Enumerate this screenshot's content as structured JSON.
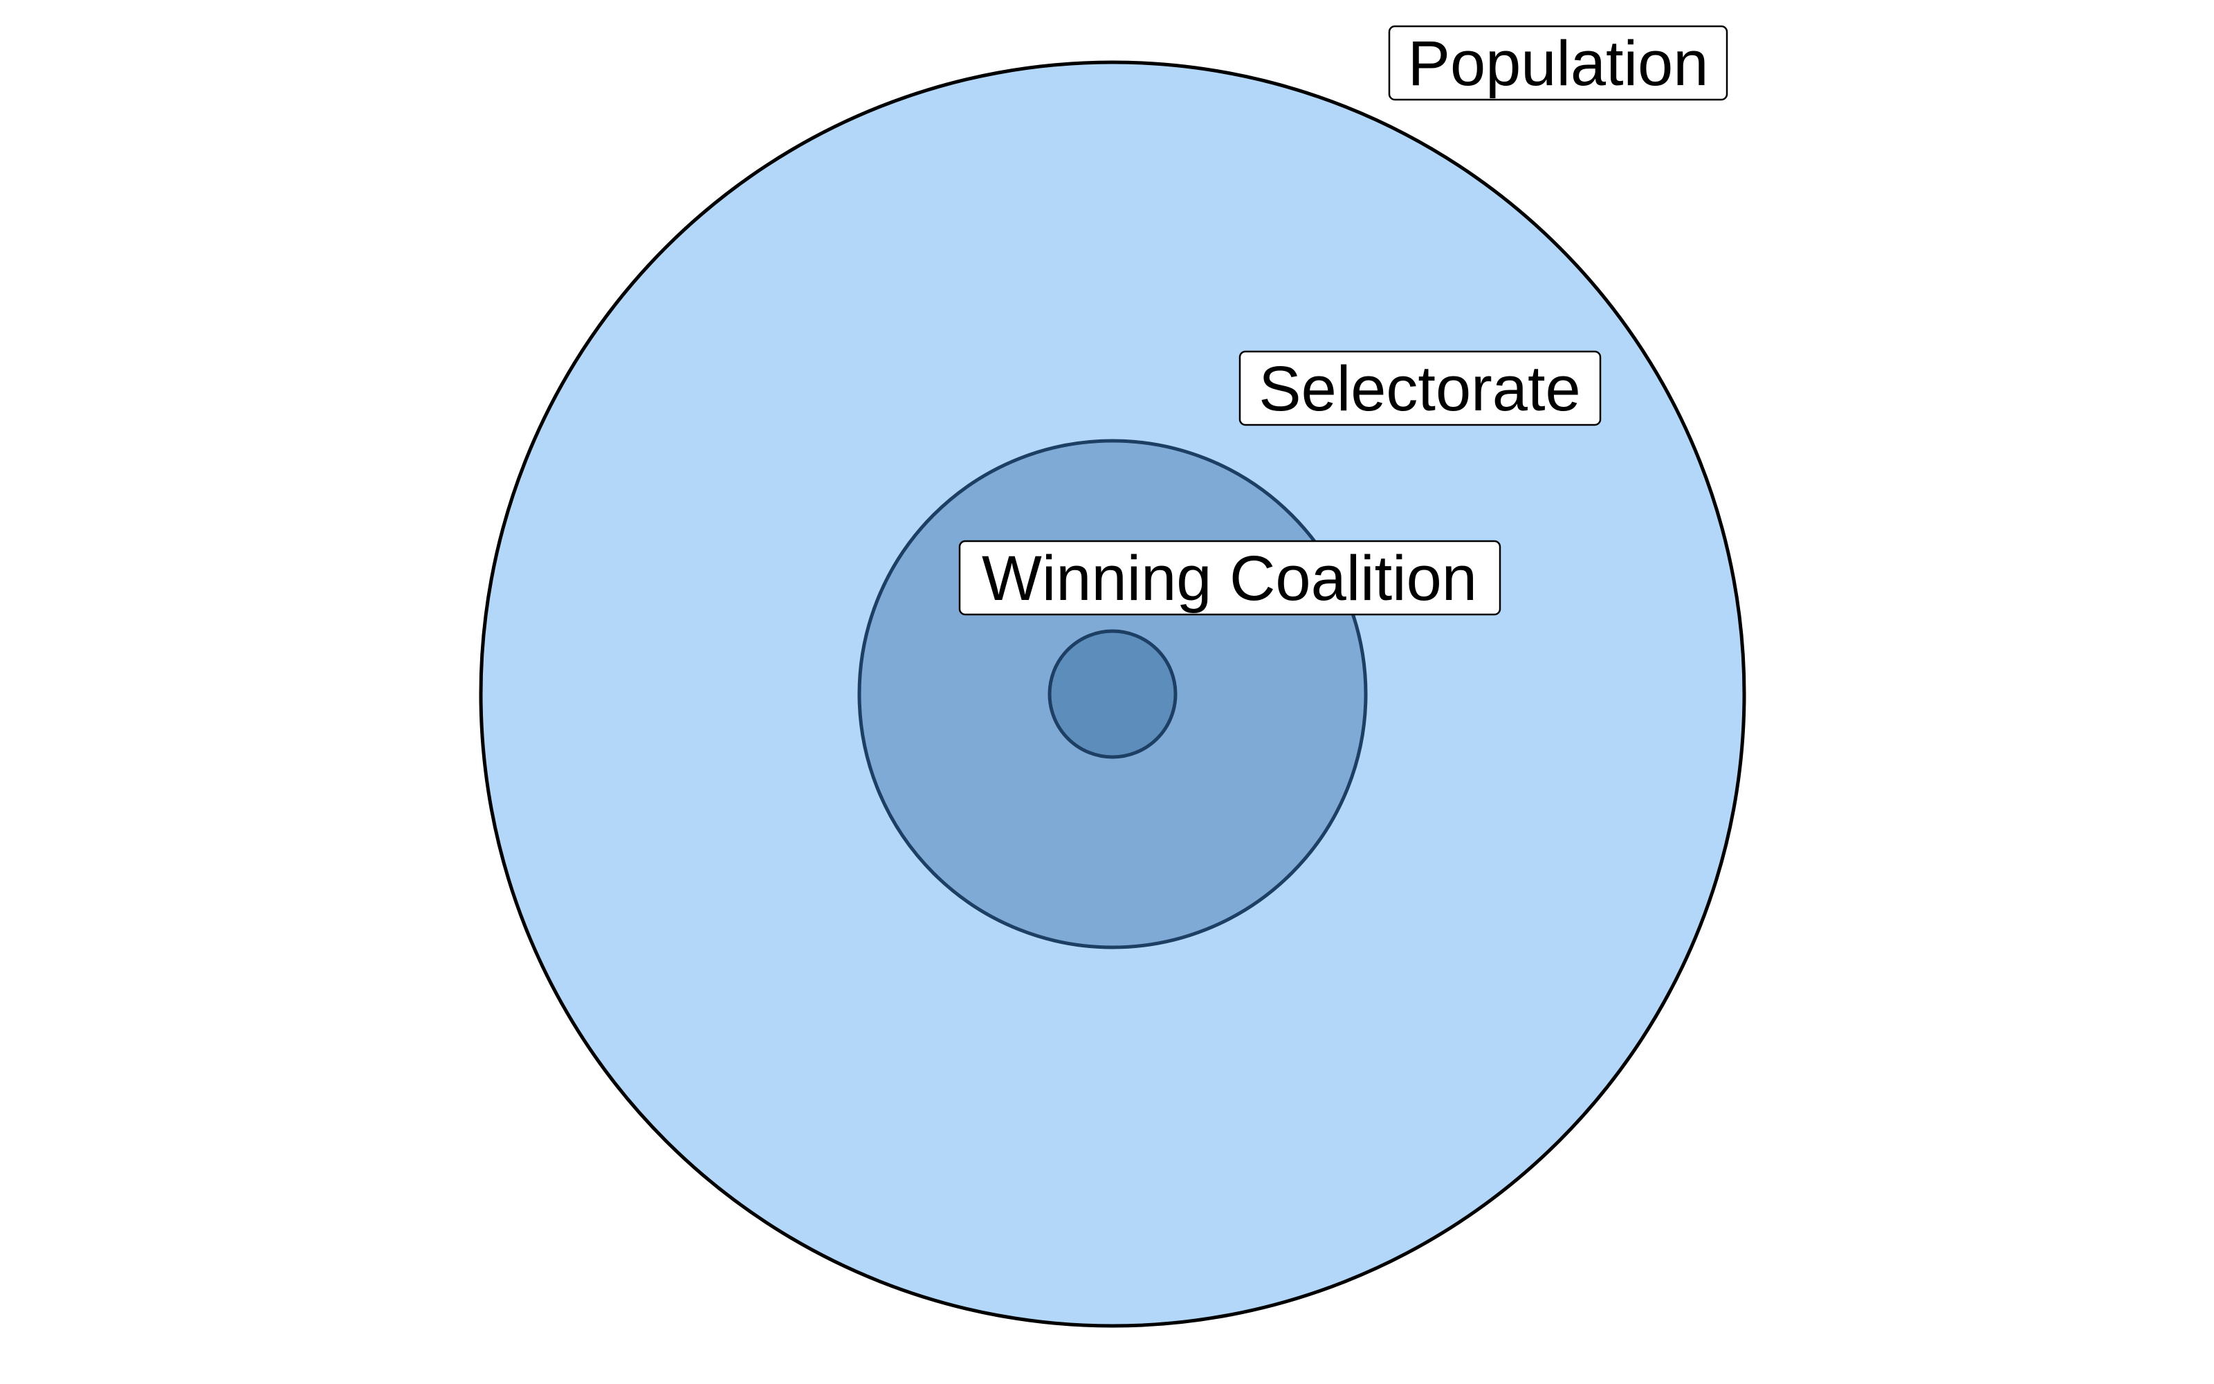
{
  "diagram": {
    "type": "nested-circles",
    "labels": {
      "population": "Population",
      "selectorate": "Selectorate",
      "winning_coalition": "Winning Coalition"
    },
    "colors": {
      "population_fill": "#b3d7f8",
      "population_stroke": "#000000",
      "selectorate_fill": "#80aad6",
      "selectorate_stroke": "#1d3f63",
      "winning_coalition_fill": "#5d8ebb",
      "winning_coalition_stroke": "#1d3f63"
    }
  }
}
